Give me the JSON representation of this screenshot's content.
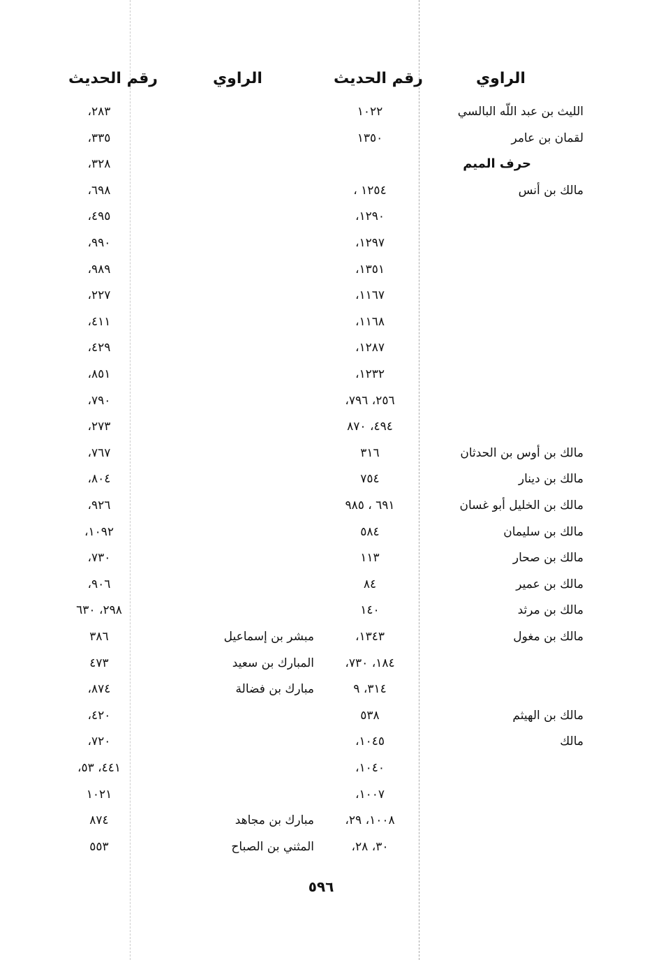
{
  "headers": {
    "right_narrator": "الراوي",
    "right_number": "رقم الحديث",
    "left_narrator": "الراوي",
    "left_number": "رقم الحديث"
  },
  "right_column": [
    {
      "name": "الليث بن عبد اللّه البالسي",
      "numbers": "١٠٢٢"
    },
    {
      "name": "لقمان بن عامر",
      "numbers": "١٣٥٠"
    },
    {
      "name": "حرف الميم",
      "numbers": "",
      "heading": true
    },
    {
      "name": "مالك بن أنس",
      "numbers": "١٢٥٤ ،"
    },
    {
      "name": "",
      "numbers": "١٢٩٠،"
    },
    {
      "name": "",
      "numbers": "١٢٩٧،"
    },
    {
      "name": "",
      "numbers": "١٣٥١،"
    },
    {
      "name": "",
      "numbers": "١١٦٧،"
    },
    {
      "name": "",
      "numbers": "١١٦٨،"
    },
    {
      "name": "",
      "numbers": "١٢٨٧،"
    },
    {
      "name": "",
      "numbers": "١٢٣٢،"
    },
    {
      "name": "",
      "numbers": "٢٥٦، ٧٩٦،"
    },
    {
      "name": "",
      "numbers": "٤٩٤، ٨٧٠"
    },
    {
      "name": "مالك بن أوس بن الحدثان",
      "numbers": "٣١٦"
    },
    {
      "name": "مالك بن دينار",
      "numbers": "٧٥٤"
    },
    {
      "name": "مالك بن الخليل أبو غسان",
      "numbers": "٦٩١ ، ٩٨٥"
    },
    {
      "name": "مالك بن سليمان",
      "numbers": "٥٨٤"
    },
    {
      "name": "مالك بن صحار",
      "numbers": "١١٣"
    },
    {
      "name": "مالك بن عمير",
      "numbers": "٨٤"
    },
    {
      "name": "مالك بن مرثد",
      "numbers": "١٤٠"
    },
    {
      "name": "مالك بن مغول",
      "numbers": "١٣٤٣،"
    },
    {
      "name": "",
      "numbers": "١٨٤، ٧٣٠،"
    },
    {
      "name": "",
      "numbers": "٣١٤، ٩"
    },
    {
      "name": "مالك بن الهيثم",
      "numbers": "٥٣٨"
    },
    {
      "name": "مالك",
      "numbers": "١٠٤٥،"
    },
    {
      "name": "",
      "numbers": "١٠٤٠،"
    },
    {
      "name": "",
      "numbers": "١٠٠٧،"
    },
    {
      "name": "",
      "numbers": "١٠٠٨، ٢٩،"
    },
    {
      "name": "",
      "numbers": "٣٠، ٢٨،"
    }
  ],
  "left_column": [
    {
      "name": "",
      "numbers": "٢٨٣،"
    },
    {
      "name": "",
      "numbers": "٣٣٥،"
    },
    {
      "name": "",
      "numbers": "٣٢٨،"
    },
    {
      "name": "",
      "numbers": "٦٩٨،"
    },
    {
      "name": "",
      "numbers": "٤٩٥،"
    },
    {
      "name": "",
      "numbers": "٩٩٠،"
    },
    {
      "name": "",
      "numbers": "٩٨٩،"
    },
    {
      "name": "",
      "numbers": "٢٢٧،"
    },
    {
      "name": "",
      "numbers": "٤١١،"
    },
    {
      "name": "",
      "numbers": "٤٢٩،"
    },
    {
      "name": "",
      "numbers": "٨٥١،"
    },
    {
      "name": "",
      "numbers": "٧٩٠،"
    },
    {
      "name": "",
      "numbers": "٢٧٣،"
    },
    {
      "name": "",
      "numbers": "٧٦٧،"
    },
    {
      "name": "",
      "numbers": "٨٠٤،"
    },
    {
      "name": "",
      "numbers": "٩٢٦،"
    },
    {
      "name": "",
      "numbers": "١٠٩٢،"
    },
    {
      "name": "",
      "numbers": "٧٣٠،"
    },
    {
      "name": "",
      "numbers": "٩٠٦،"
    },
    {
      "name": "",
      "numbers": "٢٩٨، ٦٣٠"
    },
    {
      "name": "مبشر بن إسماعيل",
      "numbers": "٣٨٦"
    },
    {
      "name": "المبارك بن سعيد",
      "numbers": "٤٧٣"
    },
    {
      "name": "مبارك بن فضالة",
      "numbers": "٨٧٤،"
    },
    {
      "name": "",
      "numbers": "٤٢٠،"
    },
    {
      "name": "",
      "numbers": "٧٢٠،"
    },
    {
      "name": "",
      "numbers": "٤٤١، ٥٣،"
    },
    {
      "name": "",
      "numbers": "١٠٢١"
    },
    {
      "name": "مبارك بن مجاهد",
      "numbers": "٨٧٤"
    },
    {
      "name": "المثني بن الصباح",
      "numbers": "٥٥٣"
    }
  ],
  "page_number": "٥٩٦"
}
